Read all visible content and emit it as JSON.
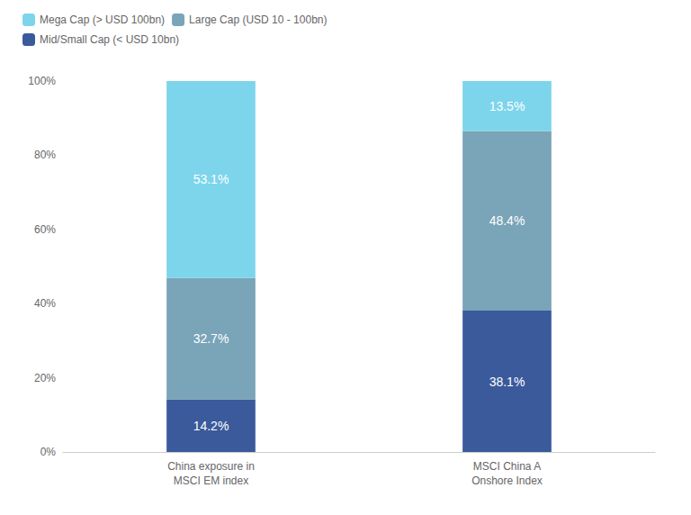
{
  "chart_data": {
    "type": "bar",
    "stacked": true,
    "categories": [
      "China exposure in\nMSCI EM index",
      "MSCI China A\nOnshore Index"
    ],
    "series": [
      {
        "name": "Mid/Small Cap (< USD 10bn)",
        "color": "#3a5a9b",
        "values": [
          14.2,
          38.1
        ],
        "value_labels": [
          "14.2%",
          "38.1%"
        ]
      },
      {
        "name": "Large Cap (USD 10 - 100bn)",
        "color": "#7aa4b8",
        "values": [
          32.7,
          48.4
        ],
        "value_labels": [
          "32.7%",
          "48.4%"
        ]
      },
      {
        "name": "Mega Cap (> USD 100bn)",
        "color": "#7dd5ec",
        "values": [
          53.1,
          13.5
        ],
        "value_labels": [
          "53.1%",
          "13.5%"
        ]
      }
    ],
    "ylim": [
      0,
      100
    ],
    "yticks": [
      {
        "value": 0,
        "label": "0%"
      },
      {
        "value": 20,
        "label": "20%"
      },
      {
        "value": 40,
        "label": "40%"
      },
      {
        "value": 60,
        "label": "60%"
      },
      {
        "value": 80,
        "label": "80%"
      },
      {
        "value": 100,
        "label": "100%"
      }
    ],
    "data_labels": true,
    "grid": false,
    "legend": "upper left"
  }
}
